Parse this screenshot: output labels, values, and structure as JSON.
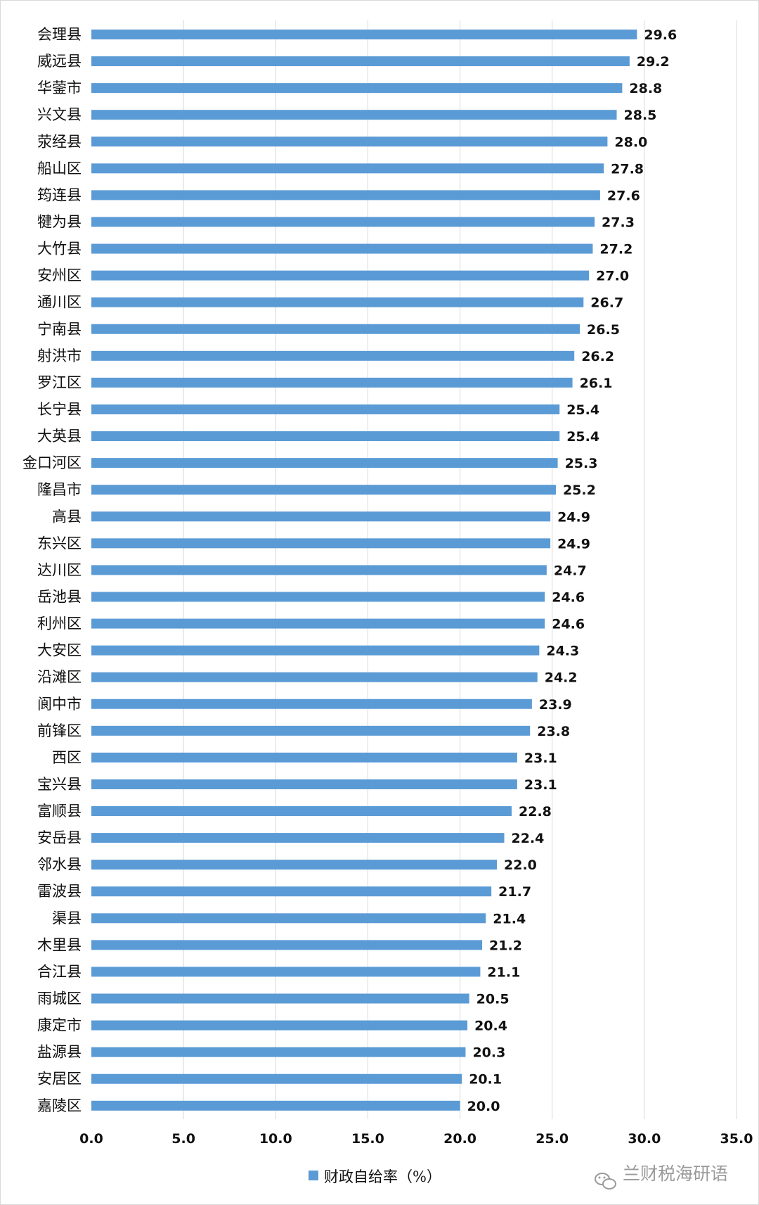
{
  "chart_data": {
    "type": "bar",
    "orientation": "horizontal",
    "categories": [
      "会理县",
      "威远县",
      "华蓥市",
      "兴文县",
      "荥经县",
      "船山区",
      "筠连县",
      "犍为县",
      "大竹县",
      "安州区",
      "通川区",
      "宁南县",
      "射洪市",
      "罗江区",
      "长宁县",
      "大英县",
      "金口河区",
      "隆昌市",
      "高县",
      "东兴区",
      "达川区",
      "岳池县",
      "利州区",
      "大安区",
      "沿滩区",
      "阆中市",
      "前锋区",
      "西区",
      "宝兴县",
      "富顺县",
      "安岳县",
      "邻水县",
      "雷波县",
      "渠县",
      "木里县",
      "合江县",
      "雨城区",
      "康定市",
      "盐源县",
      "安居区",
      "嘉陵区"
    ],
    "series": [
      {
        "name": "财政自给率（%）",
        "color": "#5b9bd5",
        "values": [
          29.6,
          29.2,
          28.8,
          28.5,
          28.0,
          27.8,
          27.6,
          27.3,
          27.2,
          27.0,
          26.7,
          26.5,
          26.2,
          26.1,
          25.4,
          25.4,
          25.3,
          25.2,
          24.9,
          24.9,
          24.7,
          24.6,
          24.6,
          24.3,
          24.2,
          23.9,
          23.8,
          23.1,
          23.1,
          22.8,
          22.4,
          22.0,
          21.7,
          21.4,
          21.2,
          21.1,
          20.5,
          20.4,
          20.3,
          20.1,
          20.0
        ]
      }
    ],
    "value_labels": [
      "29.6",
      "29.2",
      "28.8",
      "28.5",
      "28.0",
      "27.8",
      "27.6",
      "27.3",
      "27.2",
      "27.0",
      "26.7",
      "26.5",
      "26.2",
      "26.1",
      "25.4",
      "25.4",
      "25.3",
      "25.2",
      "24.9",
      "24.9",
      "24.7",
      "24.6",
      "24.6",
      "24.3",
      "24.2",
      "23.9",
      "23.8",
      "23.1",
      "23.1",
      "22.8",
      "22.4",
      "22.0",
      "21.7",
      "21.4",
      "21.2",
      "21.1",
      "20.5",
      "20.4",
      "20.3",
      "20.1",
      "20.0"
    ],
    "xlim": [
      0,
      35
    ],
    "xticks": [
      0,
      5,
      10,
      15,
      20,
      25,
      30,
      35
    ],
    "xtick_labels": [
      "0.0",
      "5.0",
      "10.0",
      "15.0",
      "20.0",
      "25.0",
      "30.0",
      "35.0"
    ],
    "grid": "vertical",
    "legend_position": "bottom"
  },
  "watermark": {
    "text": "兰财税海研语",
    "icon": "wechat-icon"
  }
}
